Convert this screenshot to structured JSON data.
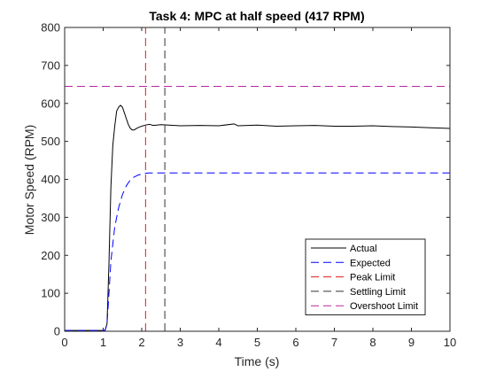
{
  "chart_data": {
    "type": "line",
    "title": "Task 4: MPC at half speed (417 RPM)",
    "xlabel": "Time (s)",
    "ylabel": "Motor Speed (RPM)",
    "xlim": [
      0,
      10
    ],
    "ylim": [
      0,
      800
    ],
    "xticks": [
      0,
      1,
      2,
      3,
      4,
      5,
      6,
      7,
      8,
      9,
      10
    ],
    "yticks": [
      0,
      100,
      200,
      300,
      400,
      500,
      600,
      700,
      800
    ],
    "grid": false,
    "legend_position": "bottom-right",
    "series": [
      {
        "name": "Actual",
        "color": "#000000",
        "dash": "solid",
        "x": [
          0,
          1.0,
          1.05,
          1.1,
          1.15,
          1.2,
          1.25,
          1.3,
          1.35,
          1.4,
          1.45,
          1.5,
          1.55,
          1.6,
          1.65,
          1.7,
          1.75,
          1.8,
          1.85,
          1.9,
          2.0,
          2.1,
          2.2,
          2.3,
          2.5,
          2.7,
          3.0,
          3.5,
          4.0,
          4.4,
          4.5,
          5.0,
          5.5,
          6.0,
          6.5,
          7.0,
          7.5,
          8.0,
          8.5,
          9.0,
          9.5,
          10.0
        ],
        "y": [
          2,
          2,
          3,
          20,
          180,
          380,
          490,
          540,
          580,
          590,
          595,
          590,
          575,
          560,
          545,
          535,
          530,
          530,
          533,
          536,
          540,
          543,
          545,
          542,
          544,
          543,
          541,
          542,
          541,
          546,
          541,
          543,
          540,
          541,
          542,
          540,
          540,
          541,
          539,
          538,
          536,
          534
        ]
      },
      {
        "name": "Expected",
        "color": "#0000ff",
        "dash": "dashed",
        "x": [
          0,
          1.0,
          1.05,
          1.1,
          1.15,
          1.2,
          1.3,
          1.4,
          1.5,
          1.6,
          1.7,
          1.8,
          1.9,
          2.0,
          2.1,
          2.2,
          2.4,
          2.6,
          3.0,
          4.0,
          5.0,
          6.0,
          7.0,
          8.0,
          9.0,
          10.0
        ],
        "y": [
          2,
          2,
          2,
          20,
          100,
          185,
          275,
          325,
          360,
          383,
          398,
          406,
          411,
          414,
          416,
          417,
          417,
          417,
          417,
          417,
          417,
          417,
          417,
          417,
          417,
          417
        ]
      },
      {
        "name": "Peak Limit",
        "color": "#e01a1a",
        "dash": "dashed",
        "orientation": "vertical",
        "x": [
          2.1,
          2.1
        ],
        "y": [
          0,
          800
        ]
      },
      {
        "name": "Settling Limit",
        "color": "#333333",
        "dash": "dashed",
        "orientation": "vertical",
        "x": [
          2.6,
          2.6
        ],
        "y": [
          0,
          800
        ]
      },
      {
        "name": "Overshoot Limit",
        "color": "#b5279e",
        "dash": "dashed",
        "orientation": "horizontal",
        "x": [
          0,
          10
        ],
        "y": [
          645,
          645
        ]
      }
    ]
  }
}
